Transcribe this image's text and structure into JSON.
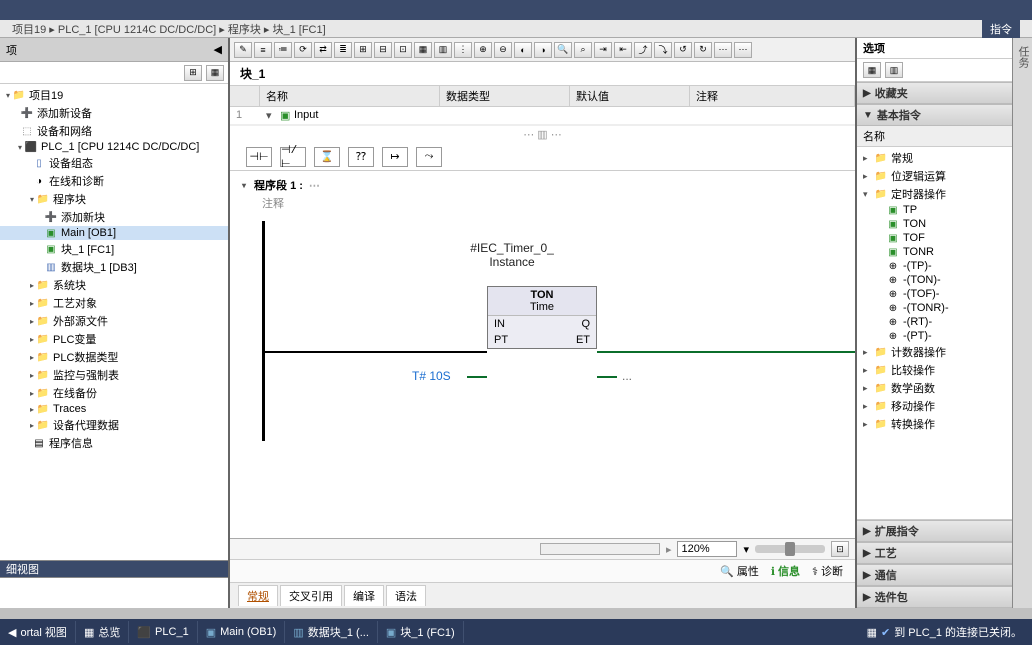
{
  "breadcrumb": "项目19 ▸ PLC_1 [CPU 1214C DC/DC/DC] ▸ 程序块 ▸ 块_1 [FC1]",
  "right_top": "指令",
  "options_label": "选项",
  "left": {
    "detail_view": "细视图",
    "tree": [
      {
        "lvl": 1,
        "exp": "▾",
        "ic": "📁",
        "cls": "folder-ic",
        "text": "项目19"
      },
      {
        "lvl": 2,
        "exp": "",
        "ic": "➕",
        "cls": "",
        "text": "添加新设备"
      },
      {
        "lvl": 2,
        "exp": "",
        "ic": "⬚",
        "cls": "dev-ic",
        "text": "设备和网络"
      },
      {
        "lvl": 2,
        "exp": "▾",
        "ic": "⬛",
        "cls": "dev-ic",
        "text": "PLC_1 [CPU 1214C DC/DC/DC]"
      },
      {
        "lvl": 3,
        "exp": "",
        "ic": "▯",
        "cls": "db-ic",
        "text": "设备组态"
      },
      {
        "lvl": 3,
        "exp": "",
        "ic": "◑",
        "cls": "",
        "text": "在线和诊断"
      },
      {
        "lvl": 3,
        "exp": "▾",
        "ic": "📁",
        "cls": "folder-ic",
        "text": "程序块"
      },
      {
        "lvl": 4,
        "exp": "",
        "ic": "➕",
        "cls": "",
        "text": "添加新块"
      },
      {
        "lvl": 4,
        "exp": "",
        "ic": "▣",
        "cls": "block-ic",
        "text": "Main [OB1]",
        "sel": true
      },
      {
        "lvl": 4,
        "exp": "",
        "ic": "▣",
        "cls": "block-ic",
        "text": "块_1 [FC1]"
      },
      {
        "lvl": 4,
        "exp": "",
        "ic": "▥",
        "cls": "db-ic",
        "text": "数据块_1 [DB3]"
      },
      {
        "lvl": 3,
        "exp": "▸",
        "ic": "📁",
        "cls": "folder-ic",
        "text": "系统块"
      },
      {
        "lvl": 3,
        "exp": "▸",
        "ic": "📁",
        "cls": "folder-ic",
        "text": "工艺对象"
      },
      {
        "lvl": 3,
        "exp": "▸",
        "ic": "📁",
        "cls": "folder-ic",
        "text": "外部源文件"
      },
      {
        "lvl": 3,
        "exp": "▸",
        "ic": "📁",
        "cls": "folder-ic",
        "text": "PLC变量"
      },
      {
        "lvl": 3,
        "exp": "▸",
        "ic": "📁",
        "cls": "folder-ic",
        "text": "PLC数据类型"
      },
      {
        "lvl": 3,
        "exp": "▸",
        "ic": "📁",
        "cls": "folder-ic",
        "text": "监控与强制表"
      },
      {
        "lvl": 3,
        "exp": "▸",
        "ic": "📁",
        "cls": "folder-ic",
        "text": "在线备份"
      },
      {
        "lvl": 3,
        "exp": "▸",
        "ic": "📁",
        "cls": "folder-ic",
        "text": "Traces"
      },
      {
        "lvl": 3,
        "exp": "▸",
        "ic": "📁",
        "cls": "folder-ic",
        "text": "设备代理数据"
      },
      {
        "lvl": 3,
        "exp": "",
        "ic": "▤",
        "cls": "",
        "text": "程序信息"
      }
    ]
  },
  "center": {
    "block_title": "块_1",
    "var_headers": {
      "name": "名称",
      "dtype": "数据类型",
      "default": "默认值",
      "comment": "注释"
    },
    "var_row1": {
      "idx": "1",
      "arrow": "▾",
      "ic": "▣",
      "text": "Input"
    },
    "ladder_tools": [
      "⊣⊢",
      "⊣/⊢",
      "⌛",
      "⁇",
      "↦",
      "⤳"
    ],
    "network": {
      "title": "程序段 1 :",
      "comment": "注释"
    },
    "instance_label": "#IEC_Timer_0_\nInstance",
    "block": {
      "name": "TON",
      "type": "Time",
      "in": "IN",
      "q": "Q",
      "pt": "PT",
      "et": "ET"
    },
    "pt_value": "T# 10S",
    "et_value": "...",
    "zoom": "120%",
    "info_top_tabs": {
      "props": "属性",
      "info": "信息",
      "diag": "诊断"
    },
    "info_tabs": [
      "常规",
      "交叉引用",
      "编译",
      "语法"
    ]
  },
  "right": {
    "sections": {
      "fav": "收藏夹",
      "basic": "基本指令",
      "ext": "扩展指令",
      "tech": "工艺",
      "comm": "通信",
      "opt": "选件包"
    },
    "name_col": "名称",
    "tree": [
      {
        "lvl": 1,
        "exp": "▸",
        "ic": "📁",
        "cls": "folder-ic",
        "text": "常规"
      },
      {
        "lvl": 1,
        "exp": "▸",
        "ic": "📁",
        "cls": "folder-ic",
        "text": "位逻辑运算"
      },
      {
        "lvl": 1,
        "exp": "▾",
        "ic": "📁",
        "cls": "folder-ic",
        "text": "定时器操作"
      },
      {
        "lvl": 2,
        "exp": "",
        "ic": "▣",
        "cls": "block-ic",
        "text": "TP"
      },
      {
        "lvl": 2,
        "exp": "",
        "ic": "▣",
        "cls": "block-ic",
        "text": "TON"
      },
      {
        "lvl": 2,
        "exp": "",
        "ic": "▣",
        "cls": "block-ic",
        "text": "TOF"
      },
      {
        "lvl": 2,
        "exp": "",
        "ic": "▣",
        "cls": "block-ic",
        "text": "TONR"
      },
      {
        "lvl": 2,
        "exp": "",
        "ic": "⊕",
        "cls": "",
        "text": "-(TP)-"
      },
      {
        "lvl": 2,
        "exp": "",
        "ic": "⊕",
        "cls": "",
        "text": "-(TON)-"
      },
      {
        "lvl": 2,
        "exp": "",
        "ic": "⊕",
        "cls": "",
        "text": "-(TOF)-"
      },
      {
        "lvl": 2,
        "exp": "",
        "ic": "⊕",
        "cls": "",
        "text": "-(TONR)-"
      },
      {
        "lvl": 2,
        "exp": "",
        "ic": "⊕",
        "cls": "",
        "text": "-(RT)-"
      },
      {
        "lvl": 2,
        "exp": "",
        "ic": "⊕",
        "cls": "",
        "text": "-(PT)-"
      },
      {
        "lvl": 1,
        "exp": "▸",
        "ic": "📁",
        "cls": "folder-ic",
        "text": "计数器操作"
      },
      {
        "lvl": 1,
        "exp": "▸",
        "ic": "📁",
        "cls": "folder-ic",
        "text": "比较操作"
      },
      {
        "lvl": 1,
        "exp": "▸",
        "ic": "📁",
        "cls": "folder-ic",
        "text": "数学函数"
      },
      {
        "lvl": 1,
        "exp": "▸",
        "ic": "📁",
        "cls": "folder-ic",
        "text": "移动操作"
      },
      {
        "lvl": 1,
        "exp": "▸",
        "ic": "📁",
        "cls": "folder-ic",
        "text": "转换操作"
      }
    ]
  },
  "taskbar": {
    "portal": "ortal 视图",
    "overview": "总览",
    "items": [
      "PLC_1",
      "Main (OB1)",
      "数据块_1 (...",
      "块_1 (FC1)"
    ],
    "status": "到 PLC_1 的连接已关闭。"
  }
}
